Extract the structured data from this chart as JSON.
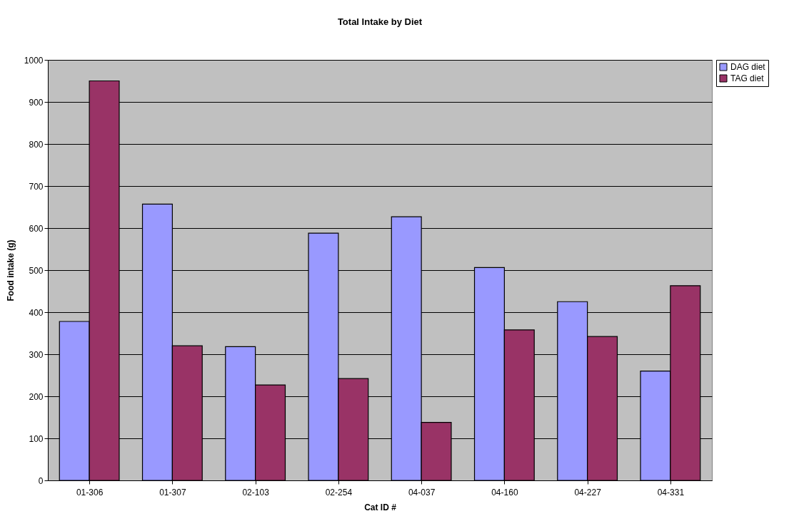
{
  "chart_data": {
    "type": "bar",
    "title": "Total Intake by Diet",
    "xlabel": "Cat ID #",
    "ylabel": "Food intake (g)",
    "categories": [
      "01-306",
      "01-307",
      "02-103",
      "02-254",
      "04-037",
      "04-160",
      "04-227",
      "04-331"
    ],
    "series": [
      {
        "name": "DAG diet",
        "color": "#9999ff",
        "values": [
          378,
          657,
          318,
          588,
          627,
          506,
          425,
          260
        ]
      },
      {
        "name": "TAG diet",
        "color": "#993366",
        "values": [
          950,
          320,
          227,
          242,
          138,
          358,
          342,
          463
        ]
      }
    ],
    "ylim": [
      0,
      1000
    ],
    "yticks": [
      0,
      100,
      200,
      300,
      400,
      500,
      600,
      700,
      800,
      900,
      1000
    ],
    "grid": "y",
    "legend": "right"
  }
}
